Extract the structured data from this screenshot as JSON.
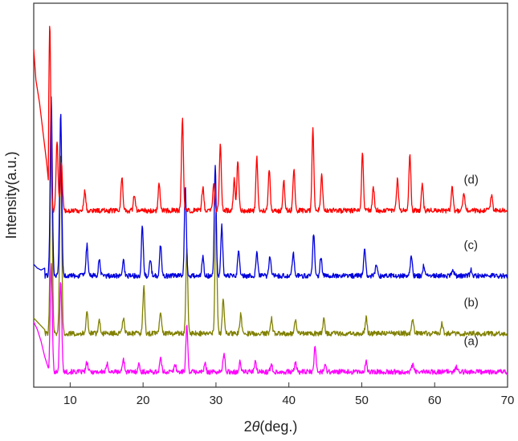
{
  "chart_data": {
    "type": "line",
    "title": "",
    "xlabel_prefix": "2",
    "xlabel_symbol": "θ",
    "xlabel_suffix": "(deg.)",
    "ylabel": "Intensity(a.u.)",
    "xlim": [
      5,
      70
    ],
    "ylim": [
      0,
      100
    ],
    "x_ticks": [
      10,
      20,
      30,
      40,
      50,
      60,
      70
    ],
    "x_tick_labels": [
      "10",
      "20",
      "30",
      "40",
      "50",
      "60",
      "70"
    ],
    "y_tick_labels_shown": false,
    "series": [
      {
        "label": "(a)",
        "color": "#ff00ff",
        "baseline": 4,
        "label_x": 64,
        "start_points": [
          [
            5.0,
            17
          ],
          [
            5.5,
            15
          ],
          [
            6.0,
            12
          ],
          [
            6.5,
            8
          ],
          [
            7.0,
            5
          ]
        ],
        "peaks": [
          [
            7.4,
            28
          ],
          [
            8.7,
            24
          ],
          [
            12.3,
            2.5
          ],
          [
            15.1,
            2
          ],
          [
            17.3,
            3.5
          ],
          [
            19.4,
            2
          ],
          [
            22.4,
            3.5
          ],
          [
            24.4,
            2
          ],
          [
            26.0,
            12
          ],
          [
            28.5,
            2
          ],
          [
            31.1,
            5
          ],
          [
            33.3,
            2.5
          ],
          [
            35.4,
            2.5
          ],
          [
            37.6,
            2
          ],
          [
            40.9,
            2.5
          ],
          [
            43.6,
            6.5
          ],
          [
            45.0,
            2
          ],
          [
            50.6,
            2.5
          ],
          [
            57.0,
            2
          ],
          [
            63.0,
            1.5
          ]
        ]
      },
      {
        "label": "(b)",
        "color": "#808000",
        "baseline": 14,
        "label_x": 64,
        "start_points": [
          [
            5.0,
            18
          ],
          [
            5.5,
            17
          ],
          [
            6.0,
            16
          ],
          [
            6.5,
            15
          ]
        ],
        "peaks": [
          [
            7.4,
            50
          ],
          [
            8.7,
            46
          ],
          [
            12.3,
            6
          ],
          [
            14.0,
            3.5
          ],
          [
            17.3,
            4
          ],
          [
            20.1,
            12
          ],
          [
            22.4,
            6
          ],
          [
            26.0,
            22
          ],
          [
            30.0,
            32
          ],
          [
            31.0,
            9
          ],
          [
            33.4,
            5
          ],
          [
            37.6,
            4
          ],
          [
            40.9,
            3.5
          ],
          [
            44.8,
            3.5
          ],
          [
            50.6,
            4
          ],
          [
            57.0,
            4
          ],
          [
            61.0,
            2.5
          ]
        ]
      },
      {
        "label": "(c)",
        "color": "#0000dd",
        "baseline": 29,
        "label_x": 64,
        "start_points": [
          [
            5.0,
            32
          ],
          [
            5.5,
            31
          ],
          [
            6.0,
            30.5
          ],
          [
            6.5,
            31
          ]
        ],
        "peaks": [
          [
            7.4,
            47
          ],
          [
            8.7,
            42
          ],
          [
            12.3,
            8
          ],
          [
            14.0,
            4
          ],
          [
            17.3,
            4
          ],
          [
            19.9,
            13
          ],
          [
            21.0,
            4
          ],
          [
            22.4,
            8
          ],
          [
            25.8,
            23
          ],
          [
            28.2,
            5
          ],
          [
            29.9,
            29
          ],
          [
            30.8,
            13
          ],
          [
            33.1,
            7
          ],
          [
            35.6,
            6
          ],
          [
            37.4,
            5
          ],
          [
            40.6,
            6
          ],
          [
            43.4,
            11
          ],
          [
            44.4,
            5
          ],
          [
            50.4,
            7
          ],
          [
            52.0,
            3
          ],
          [
            56.8,
            5
          ],
          [
            58.5,
            2.5
          ],
          [
            62.5,
            2
          ],
          [
            65.0,
            1.5
          ]
        ]
      },
      {
        "label": "(d)",
        "color": "#ff0000",
        "baseline": 46,
        "label_x": 64,
        "start_points": [
          [
            5.0,
            88
          ],
          [
            5.3,
            80
          ],
          [
            5.8,
            74
          ],
          [
            6.3,
            66
          ],
          [
            6.8,
            58
          ],
          [
            7.0,
            54
          ]
        ],
        "peaks": [
          [
            7.2,
            48
          ],
          [
            8.2,
            18
          ],
          [
            8.8,
            12
          ],
          [
            12.0,
            5
          ],
          [
            17.1,
            9
          ],
          [
            18.8,
            4
          ],
          [
            22.2,
            7
          ],
          [
            25.4,
            24
          ],
          [
            28.2,
            6
          ],
          [
            29.7,
            7
          ],
          [
            30.6,
            17
          ],
          [
            32.5,
            8
          ],
          [
            33.0,
            13
          ],
          [
            35.6,
            14
          ],
          [
            37.3,
            11
          ],
          [
            39.3,
            8
          ],
          [
            40.7,
            11
          ],
          [
            43.3,
            21
          ],
          [
            44.5,
            9
          ],
          [
            50.1,
            15
          ],
          [
            51.6,
            6
          ],
          [
            54.9,
            8
          ],
          [
            56.6,
            15
          ],
          [
            58.3,
            7
          ],
          [
            62.4,
            6
          ],
          [
            64.0,
            5
          ],
          [
            67.8,
            4
          ]
        ]
      }
    ]
  }
}
